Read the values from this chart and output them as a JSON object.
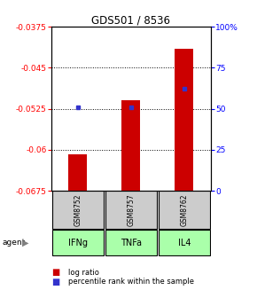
{
  "title": "GDS501 / 8536",
  "samples": [
    "GSM8752",
    "GSM8757",
    "GSM8762"
  ],
  "agents": [
    "IFNg",
    "TNFa",
    "IL4"
  ],
  "log_ratios": [
    -0.0608,
    -0.051,
    -0.0415
  ],
  "percentile_ranks": [
    0.51,
    0.51,
    0.62
  ],
  "bar_color": "#cc0000",
  "dot_color": "#3333cc",
  "ymin": -0.0675,
  "ymax": -0.0375,
  "yticks": [
    -0.0375,
    -0.045,
    -0.0525,
    -0.06,
    -0.0675
  ],
  "ytick_labels": [
    "-0.0375",
    "-0.045",
    "-0.0525",
    "-0.06",
    "-0.0675"
  ],
  "right_yticks": [
    0,
    25,
    50,
    75,
    100
  ],
  "right_ytick_labels": [
    "0",
    "25",
    "50",
    "75",
    "100%"
  ],
  "sample_bg_color": "#cccccc",
  "agent_color": "#aaffaa",
  "bar_width": 0.35,
  "figsize": [
    2.9,
    3.36
  ],
  "dpi": 100
}
